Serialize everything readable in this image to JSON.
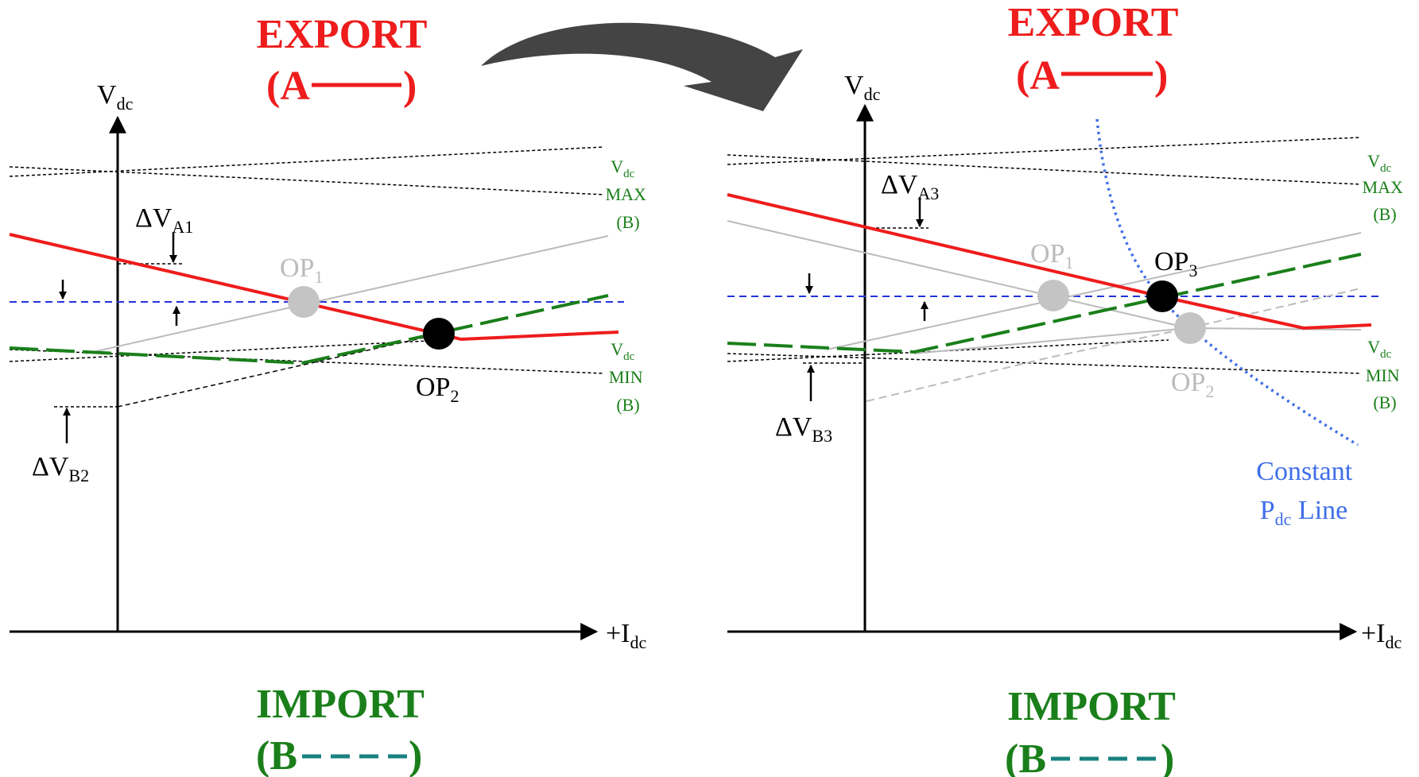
{
  "colors": {
    "export": "#ee1c1c",
    "import": "#1a7f1a",
    "import_dash": "#1a8080",
    "reference": "#2233dd",
    "constant_power": "#3f6ee8",
    "shifted": "#bbbbbb",
    "arrow": "#444444",
    "axis": "#000000"
  },
  "left": {
    "export": {
      "title": "EXPORT",
      "legend": "(A",
      "close": ")"
    },
    "import": {
      "title": "IMPORT",
      "legend": "(B",
      "close": ")"
    },
    "y_axis": {
      "main": "V",
      "sub": "dc"
    },
    "x_axis": {
      "main": "+I",
      "sub": "dc"
    },
    "vmax": {
      "v": "V",
      "sub": "dc",
      "line1": "MAX",
      "line2": "(B)"
    },
    "vmin": {
      "v": "V",
      "sub": "dc",
      "line1": "MIN",
      "line2": "(B)"
    },
    "delta_a": {
      "main": "ΔV",
      "sub": "A1"
    },
    "delta_b": {
      "main": "ΔV",
      "sub": "B2"
    },
    "op1": {
      "main": "OP",
      "sub": "1"
    },
    "op2": {
      "main": "OP",
      "sub": "2"
    }
  },
  "right": {
    "export": {
      "title": "EXPORT",
      "legend": "(A",
      "close": ")"
    },
    "import": {
      "title": "IMPORT",
      "legend": "(B",
      "close": ")"
    },
    "y_axis": {
      "main": "V",
      "sub": "dc"
    },
    "x_axis": {
      "main": "+I",
      "sub": "dc"
    },
    "vmax": {
      "v": "V",
      "sub": "dc",
      "line1": "MAX",
      "line2": "(B)"
    },
    "vmin": {
      "v": "V",
      "sub": "dc",
      "line1": "MIN",
      "line2": "(B)"
    },
    "delta_a": {
      "main": "ΔV",
      "sub": "A3"
    },
    "delta_b": {
      "main": "ΔV",
      "sub": "B3"
    },
    "op1": {
      "main": "OP",
      "sub": "1"
    },
    "op2": {
      "main": "OP",
      "sub": "2"
    },
    "op3": {
      "main": "OP",
      "sub": "3"
    },
    "constant_line": {
      "line1": "Constant",
      "p": "P",
      "sub": "dc",
      "rest": " Line"
    }
  }
}
